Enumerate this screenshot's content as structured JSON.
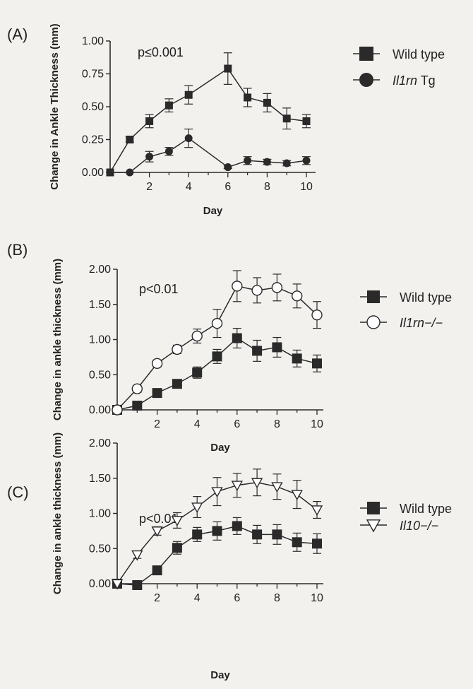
{
  "colors": {
    "background": "#f2f1ee",
    "ink": "#2a2a2a",
    "open_fill": "#ffffff"
  },
  "chart_data": [
    {
      "type": "line",
      "panel_label": "(A)",
      "annotation": "p≤0.001",
      "xlabel": "Day",
      "ylabel": "Change in Ankle Thickness (mm)",
      "xlim": [
        0,
        11
      ],
      "ylim": [
        0,
        1.0
      ],
      "x_ticks": [
        "2",
        "4",
        "6",
        "8",
        "10"
      ],
      "y_ticks": [
        "0.00",
        "0.25",
        "0.50",
        "0.75",
        "1.00"
      ],
      "grid": false,
      "legend_position": "right",
      "series": [
        {
          "name": "Wild type",
          "name_parts": [
            "",
            "Wild type"
          ],
          "marker": "square-filled",
          "x": [
            0,
            1,
            2,
            3,
            4,
            6,
            7,
            8,
            9,
            10
          ],
          "y": [
            0.0,
            0.25,
            0.39,
            0.51,
            0.59,
            0.79,
            0.57,
            0.53,
            0.41,
            0.39
          ],
          "err": [
            0,
            0.02,
            0.05,
            0.05,
            0.07,
            0.12,
            0.07,
            0.07,
            0.08,
            0.05
          ]
        },
        {
          "name": "Il1rn Tg",
          "name_parts": [
            "Il1rn",
            " Tg"
          ],
          "marker": "circle-filled",
          "x": [
            0,
            1,
            2,
            3,
            4,
            6,
            7,
            8,
            9,
            10
          ],
          "y": [
            0.0,
            0.0,
            0.12,
            0.16,
            0.26,
            0.04,
            0.09,
            0.08,
            0.07,
            0.09
          ],
          "err": [
            0,
            0,
            0.04,
            0.03,
            0.07,
            0.01,
            0.03,
            0.02,
            0.02,
            0.03
          ]
        }
      ]
    },
    {
      "type": "line",
      "panel_label": "(B)",
      "annotation": "p<0.01",
      "xlabel": "Day",
      "ylabel": "Change in ankle  thickness (mm)",
      "xlim": [
        0,
        11
      ],
      "ylim": [
        0,
        2.0
      ],
      "x_ticks": [
        "2",
        "4",
        "6",
        "8",
        "10"
      ],
      "y_ticks": [
        "0.00",
        "0.50",
        "1.00",
        "1.50",
        "2.00"
      ],
      "grid": false,
      "legend_position": "right",
      "series": [
        {
          "name": "Wild type",
          "name_parts": [
            "",
            "Wild type"
          ],
          "marker": "square-filled",
          "x": [
            0,
            1,
            2,
            3,
            4,
            5,
            6,
            7,
            8,
            9,
            10
          ],
          "y": [
            0.0,
            0.06,
            0.24,
            0.37,
            0.53,
            0.76,
            1.02,
            0.84,
            0.89,
            0.73,
            0.66
          ],
          "err": [
            0,
            0.02,
            0.03,
            0.06,
            0.08,
            0.1,
            0.14,
            0.15,
            0.14,
            0.12,
            0.12
          ]
        },
        {
          "name": "Il1rn−/−",
          "name_parts": [
            "Il1rn−/−",
            ""
          ],
          "marker": "circle-open",
          "x": [
            0,
            1,
            2,
            3,
            4,
            5,
            6,
            7,
            8,
            9,
            10
          ],
          "y": [
            0.0,
            0.3,
            0.66,
            0.86,
            1.05,
            1.23,
            1.76,
            1.7,
            1.74,
            1.62,
            1.35
          ],
          "err": [
            0,
            0.05,
            0.05,
            0.06,
            0.1,
            0.2,
            0.22,
            0.18,
            0.19,
            0.17,
            0.19
          ]
        }
      ]
    },
    {
      "type": "line",
      "panel_label": "(C)",
      "annotation": "p<0.01",
      "xlabel": "Day",
      "ylabel": "Change in ankle  thickness (mm)",
      "xlim": [
        0,
        11
      ],
      "ylim": [
        0,
        2.0
      ],
      "x_ticks": [
        "2",
        "4",
        "6",
        "8",
        "10"
      ],
      "y_ticks": [
        "0.00",
        "0.50",
        "1.00",
        "1.50",
        "2.00"
      ],
      "grid": false,
      "legend_position": "right",
      "series": [
        {
          "name": "Wild type",
          "name_parts": [
            "",
            "Wild type"
          ],
          "marker": "square-filled",
          "x": [
            0,
            1,
            2,
            3,
            4,
            5,
            6,
            7,
            8,
            9,
            10
          ],
          "y": [
            0.0,
            -0.02,
            0.19,
            0.51,
            0.7,
            0.75,
            0.82,
            0.7,
            0.7,
            0.59,
            0.57
          ],
          "err": [
            0,
            0.02,
            0.04,
            0.09,
            0.1,
            0.13,
            0.12,
            0.13,
            0.14,
            0.13,
            0.14
          ]
        },
        {
          "name": "Il10−/−",
          "name_parts": [
            "Il10−/−",
            ""
          ],
          "marker": "triangle-down-open",
          "x": [
            0,
            1,
            2,
            3,
            4,
            5,
            6,
            7,
            8,
            9,
            10
          ],
          "y": [
            0.0,
            0.41,
            0.75,
            0.9,
            1.09,
            1.31,
            1.4,
            1.44,
            1.38,
            1.27,
            1.05
          ],
          "err": [
            0,
            0.05,
            0.06,
            0.11,
            0.15,
            0.2,
            0.17,
            0.19,
            0.18,
            0.2,
            0.12
          ]
        }
      ]
    }
  ]
}
